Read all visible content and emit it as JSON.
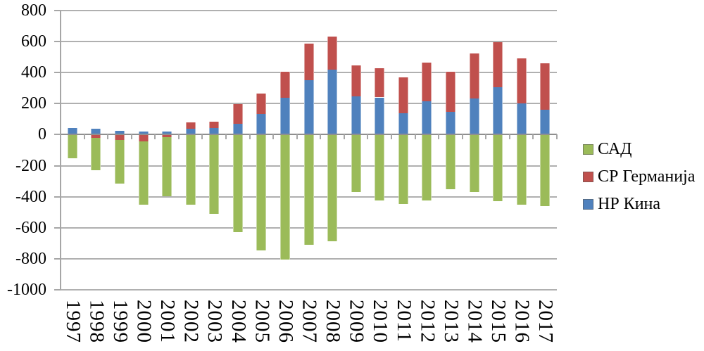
{
  "chart_data": {
    "type": "bar",
    "stacked": true,
    "title": "",
    "xlabel": "",
    "ylabel": "",
    "grid": true,
    "legend_position": "right",
    "ylim": [
      -1000,
      800
    ],
    "ytick_interval": 200,
    "yticks": [
      "800",
      "600",
      "400",
      "200",
      "0",
      "-200",
      "-400",
      "-600",
      "-800",
      "-1000"
    ],
    "categories": [
      "1997",
      "1998",
      "1999",
      "2000",
      "2001",
      "2002",
      "2003",
      "2004",
      "2005",
      "2006",
      "2007",
      "2008",
      "2009",
      "2010",
      "2011",
      "2012",
      "2013",
      "2014",
      "2015",
      "2016",
      "2017"
    ],
    "series": [
      {
        "name": "САД",
        "color": "#9bbb59",
        "values": [
          -150,
          -210,
          -280,
          -405,
          -380,
          -450,
          -510,
          -630,
          -745,
          -805,
          -710,
          -685,
          -370,
          -425,
          -445,
          -425,
          -350,
          -370,
          -430,
          -450,
          -460
        ]
      },
      {
        "name": "СР Германија",
        "color": "#c0504d",
        "values": [
          0,
          -20,
          -35,
          -45,
          -15,
          40,
          40,
          125,
          130,
          165,
          235,
          210,
          200,
          190,
          230,
          250,
          260,
          290,
          290,
          290,
          300
        ]
      },
      {
        "name": "НР Кина",
        "color": "#4f81bd",
        "values": [
          45,
          40,
          25,
          20,
          20,
          40,
          45,
          70,
          135,
          240,
          350,
          420,
          245,
          240,
          140,
          215,
          145,
          235,
          305,
          200,
          160
        ]
      }
    ],
    "axis_color": "#a6a6a6",
    "zero_line_color": "#8f8f8f",
    "gridline_color": "#b0b0b0"
  },
  "legend": {
    "items": [
      {
        "label": "САД"
      },
      {
        "label": "СР Германија"
      },
      {
        "label": "НР Кина"
      }
    ]
  }
}
